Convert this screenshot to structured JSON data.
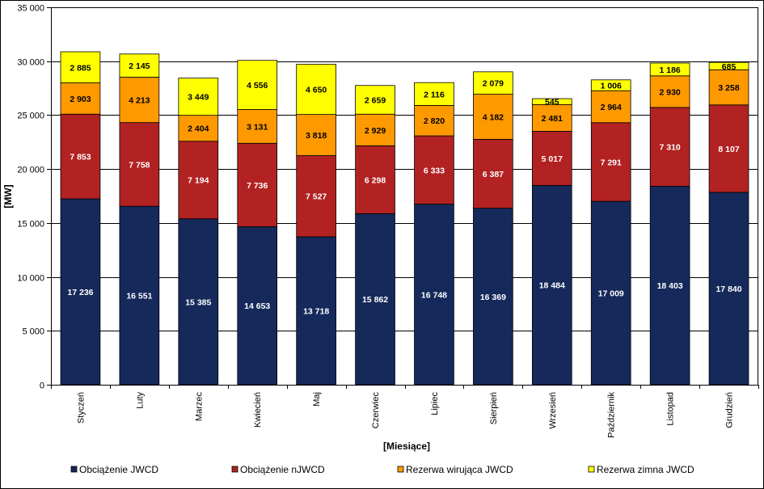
{
  "chart_data": {
    "type": "bar",
    "stacked": true,
    "categories": [
      "Styczeń",
      "Luty",
      "Marzec",
      "Kwiecień",
      "Maj",
      "Czerwiec",
      "Lipiec",
      "Sierpień",
      "Wrzesień",
      "Październik",
      "Listopad",
      "Grudzień"
    ],
    "series": [
      {
        "name": "Obciążenie JWCD",
        "color": "#15295a",
        "label_color": "#ffffff",
        "values": [
          17236,
          16551,
          15385,
          14653,
          13718,
          15862,
          16748,
          16369,
          18484,
          17009,
          18403,
          17840
        ],
        "labels": [
          "17 236",
          "16 551",
          "15 385",
          "14 653",
          "13 718",
          "15 862",
          "16 748",
          "16 369",
          "18 484",
          "17 009",
          "18 403",
          "17 840"
        ]
      },
      {
        "name": "Obciążenie nJWCD",
        "color": "#b22222",
        "label_color": "#ffffff",
        "values": [
          7853,
          7758,
          7194,
          7736,
          7527,
          6298,
          6333,
          6387,
          5017,
          7291,
          7310,
          8107
        ],
        "labels": [
          "7 853",
          "7 758",
          "7 194",
          "7 736",
          "7 527",
          "6 298",
          "6 333",
          "6 387",
          "5 017",
          "7 291",
          "7 310",
          "8 107"
        ]
      },
      {
        "name": "Rezerwa wirująca JWCD",
        "color": "#ff9900",
        "label_color": "#000000",
        "values": [
          2903,
          4213,
          2404,
          3131,
          3818,
          2929,
          2820,
          4182,
          2481,
          2964,
          2930,
          3258
        ],
        "labels": [
          "2 903",
          "4 213",
          "2 404",
          "3 131",
          "3 818",
          "2 929",
          "2 820",
          "4 182",
          "2 481",
          "2 964",
          "2 930",
          "3 258"
        ]
      },
      {
        "name": "Rezerwa zimna JWCD",
        "color": "#ffff00",
        "label_color": "#000000",
        "values": [
          2885,
          2145,
          3449,
          4556,
          4650,
          2659,
          2116,
          2079,
          545,
          1006,
          1186,
          685
        ],
        "labels": [
          "2 885",
          "2 145",
          "3 449",
          "4 556",
          "4 650",
          "2 659",
          "2 116",
          "2 079",
          "545",
          "1 006",
          "1 186",
          "685"
        ]
      }
    ],
    "ylabel": "[MW]",
    "xlabel": "[Miesiące]",
    "ylim": [
      0,
      35000
    ],
    "yticks": [
      0,
      5000,
      10000,
      15000,
      20000,
      25000,
      30000,
      35000
    ],
    "ytick_labels": [
      "0",
      "5 000",
      "10 000",
      "15 000",
      "20 000",
      "25 000",
      "30 000",
      "35 000"
    ],
    "grid": true,
    "legend_position": "bottom"
  }
}
